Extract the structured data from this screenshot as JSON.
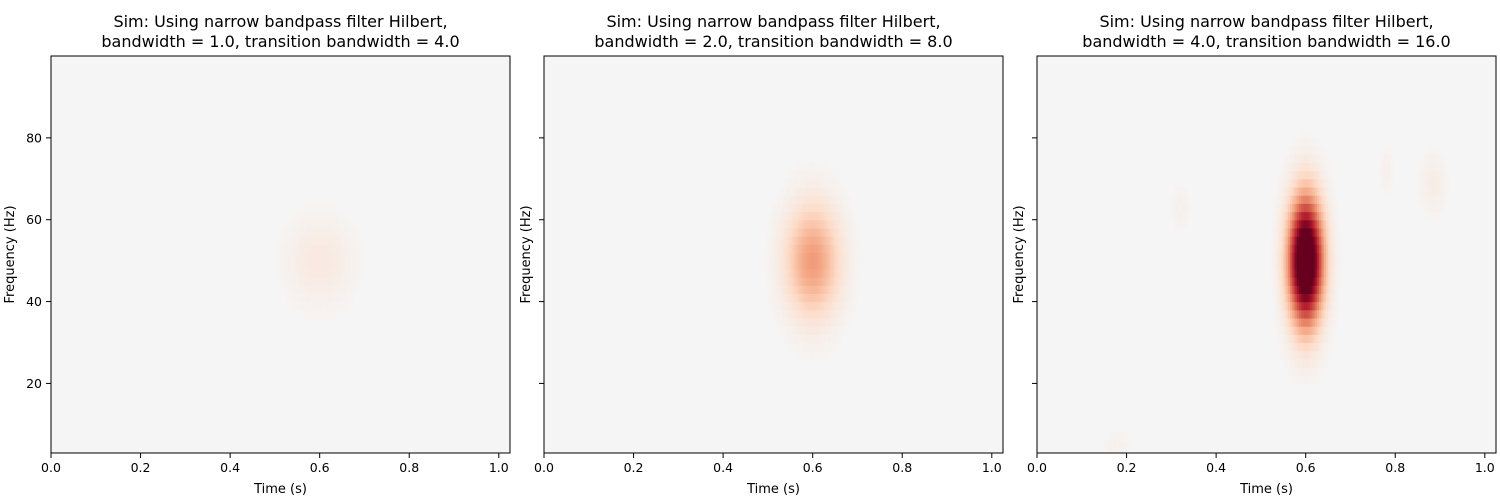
{
  "chart_data": [
    {
      "type": "heatmap",
      "title_lines": [
        "Sim: Using narrow bandpass filter Hilbert,",
        "bandwidth = 1.0, transition bandwidth = 4.0"
      ],
      "xlabel": "Time (s)",
      "ylabel": "Frequency (Hz)",
      "xlim": [
        0.0,
        1.025
      ],
      "ylim": [
        3,
        100
      ],
      "xticks": [
        0.0,
        0.2,
        0.4,
        0.6,
        0.8,
        1.0
      ],
      "xtick_labels": [
        "0.0",
        "0.2",
        "0.4",
        "0.6",
        "0.8",
        "1.0"
      ],
      "yticks": [
        20,
        40,
        60,
        80
      ],
      "ytick_labels": [
        "20",
        "40",
        "60",
        "80"
      ],
      "show_ytick_labels": true,
      "colormap": "RdBu_r",
      "background_color": "#f5f5f5",
      "blobs": [
        {
          "t": 0.6,
          "f": 50,
          "t_width": 0.05,
          "f_width": 7,
          "intensity": 0.07
        }
      ]
    },
    {
      "type": "heatmap",
      "title_lines": [
        "Sim: Using narrow bandpass filter Hilbert,",
        "bandwidth = 2.0, transition bandwidth = 8.0"
      ],
      "xlabel": "Time (s)",
      "ylabel": "Frequency (Hz)",
      "xlim": [
        0.0,
        1.025
      ],
      "ylim": [
        3,
        100
      ],
      "xticks": [
        0.0,
        0.2,
        0.4,
        0.6,
        0.8,
        1.0
      ],
      "xtick_labels": [
        "0.0",
        "0.2",
        "0.4",
        "0.6",
        "0.8",
        "1.0"
      ],
      "yticks": [
        20,
        40,
        60,
        80
      ],
      "ytick_labels": [
        "20",
        "40",
        "60",
        "80"
      ],
      "show_ytick_labels": false,
      "colormap": "RdBu_r",
      "background_color": "#f5f5f5",
      "blobs": [
        {
          "t": 0.6,
          "f": 50,
          "t_width": 0.04,
          "f_width": 9,
          "intensity": 0.38
        }
      ]
    },
    {
      "type": "heatmap",
      "title_lines": [
        "Sim: Using narrow bandpass filter Hilbert,",
        "bandwidth = 4.0, transition bandwidth = 16.0"
      ],
      "xlabel": "Time (s)",
      "ylabel": "Frequency (Hz)",
      "xlim": [
        0.0,
        1.025
      ],
      "ylim": [
        3,
        100
      ],
      "xticks": [
        0.0,
        0.2,
        0.4,
        0.6,
        0.8,
        1.0
      ],
      "xtick_labels": [
        "0.0",
        "0.2",
        "0.4",
        "0.6",
        "0.8",
        "1.0"
      ],
      "yticks": [
        20,
        40,
        60,
        80
      ],
      "ytick_labels": [
        "20",
        "40",
        "60",
        "80"
      ],
      "show_ytick_labels": false,
      "colormap": "RdBu_r",
      "background_color": "#f5f5f5",
      "blobs": [
        {
          "t": 0.6,
          "f": 50,
          "t_width": 0.025,
          "f_width": 10,
          "intensity": 1.4
        },
        {
          "t": 0.885,
          "f": 69,
          "t_width": 0.02,
          "f_width": 5,
          "intensity": 0.05
        },
        {
          "t": 0.78,
          "f": 72,
          "t_width": 0.01,
          "f_width": 4,
          "intensity": 0.03
        },
        {
          "t": 0.32,
          "f": 63,
          "t_width": 0.015,
          "f_width": 4,
          "intensity": 0.03
        },
        {
          "t": 0.18,
          "f": 5,
          "t_width": 0.02,
          "f_width": 2,
          "intensity": 0.03
        }
      ]
    }
  ]
}
